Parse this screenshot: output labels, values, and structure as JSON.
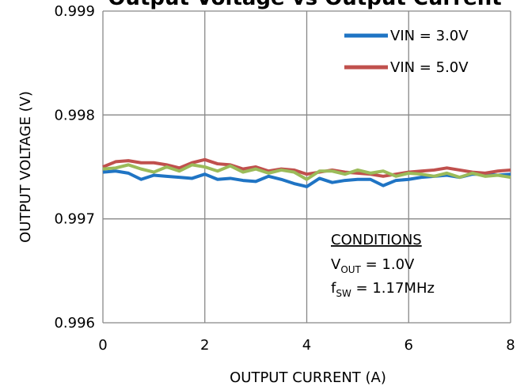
{
  "chart_data": {
    "type": "line",
    "title": "Output Voltage vs Output Current",
    "x_label": "OUTPUT CURRENT (A)",
    "y_label": "OUTPUT VOLTAGE (V)",
    "x": [
      0,
      0.25,
      0.5,
      0.75,
      1,
      1.25,
      1.5,
      1.75,
      2,
      2.25,
      2.5,
      2.75,
      3,
      3.25,
      3.5,
      3.75,
      4,
      4.25,
      4.5,
      4.75,
      5,
      5.25,
      5.5,
      5.75,
      6,
      6.25,
      6.5,
      6.75,
      7,
      7.25,
      7.5,
      7.75,
      8
    ],
    "series": [
      {
        "name": "VIN = 3.0V",
        "color": "#1f74c4",
        "values": [
          0.99745,
          0.99746,
          0.99744,
          0.99738,
          0.99742,
          0.99741,
          0.9974,
          0.99739,
          0.99743,
          0.99738,
          0.99739,
          0.99737,
          0.99736,
          0.99741,
          0.99738,
          0.99734,
          0.99731,
          0.99739,
          0.99735,
          0.99737,
          0.99738,
          0.99738,
          0.99732,
          0.99737,
          0.99738,
          0.9974,
          0.99741,
          0.99742,
          0.9974,
          0.99743,
          0.99743,
          0.99742,
          0.99743
        ]
      },
      {
        "name": "VIN = 5.0V",
        "color": "#c0504d",
        "values": [
          0.9975,
          0.99755,
          0.99756,
          0.99754,
          0.99754,
          0.99752,
          0.99749,
          0.99754,
          0.99757,
          0.99753,
          0.99752,
          0.99748,
          0.9975,
          0.99746,
          0.99748,
          0.99747,
          0.99743,
          0.99745,
          0.99747,
          0.99745,
          0.99744,
          0.99743,
          0.99741,
          0.99743,
          0.99745,
          0.99746,
          0.99747,
          0.99749,
          0.99747,
          0.99745,
          0.99744,
          0.99746,
          0.99747
        ]
      },
      {
        "color": "#9bbb59",
        "values": [
          0.99748,
          0.99749,
          0.99752,
          0.99748,
          0.99745,
          0.9975,
          0.99746,
          0.99752,
          0.9975,
          0.99746,
          0.99751,
          0.99745,
          0.99748,
          0.99744,
          0.99747,
          0.99745,
          0.99738,
          0.99746,
          0.99746,
          0.99743,
          0.99747,
          0.99744,
          0.99746,
          0.99741,
          0.99744,
          0.99743,
          0.99741,
          0.99744,
          0.9974,
          0.99744,
          0.99741,
          0.99742,
          0.9974
        ]
      }
    ],
    "xlim": [
      0,
      8
    ],
    "xticks": [
      0,
      2,
      4,
      6,
      8
    ],
    "ylim": [
      0.996,
      0.999
    ],
    "yticks": [
      0.996,
      0.997,
      0.998,
      0.999
    ],
    "grid": true,
    "legend": "upper right",
    "annotation": {
      "heading": "CONDITIONS",
      "lines": [
        {
          "main": "V",
          "sub": "OUT",
          "rest": " = 1.0V"
        },
        {
          "main": "f",
          "sub": "SW",
          "rest": " = 1.17MHz"
        }
      ]
    }
  }
}
